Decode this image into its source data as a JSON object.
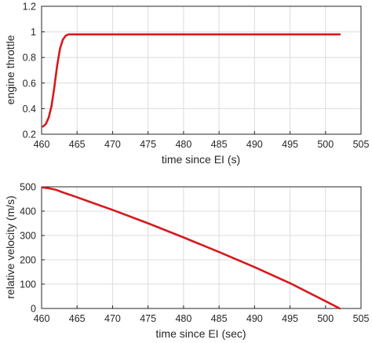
{
  "chart_data": [
    {
      "type": "line",
      "title": "",
      "xlabel": "time since EI (s)",
      "ylabel": "engine throttle",
      "xlim": [
        460,
        505
      ],
      "ylim": [
        0.2,
        1.2
      ],
      "xticks": [
        "460",
        "465",
        "470",
        "475",
        "480",
        "485",
        "490",
        "495",
        "500",
        "505"
      ],
      "yticks": [
        "0.2",
        "0.4",
        "0.6",
        "0.8",
        "1",
        "1.2"
      ],
      "grid": true,
      "series": [
        {
          "color": "#d7191c",
          "x": [
            460.2,
            460.6,
            461.0,
            461.4,
            461.8,
            462.2,
            462.6,
            463.0,
            463.4,
            463.8,
            464.3,
            465,
            470,
            480,
            490,
            502
          ],
          "y": [
            0.26,
            0.28,
            0.33,
            0.42,
            0.57,
            0.74,
            0.87,
            0.94,
            0.97,
            0.98,
            0.98,
            0.98,
            0.98,
            0.98,
            0.98,
            0.98
          ]
        }
      ]
    },
    {
      "type": "line",
      "title": "",
      "xlabel": "time since EI (sec)",
      "ylabel": "relative velocity (m/s)",
      "xlim": [
        460,
        505
      ],
      "ylim": [
        0,
        500
      ],
      "xticks": [
        "460",
        "465",
        "470",
        "475",
        "480",
        "485",
        "490",
        "495",
        "500",
        "505"
      ],
      "yticks": [
        "0",
        "100",
        "200",
        "300",
        "400",
        "500"
      ],
      "grid": true,
      "series": [
        {
          "color": "#d7191c",
          "x": [
            460.2,
            461,
            462,
            463,
            465,
            470,
            475,
            480,
            485,
            490,
            495,
            500,
            502
          ],
          "y": [
            497,
            494,
            488,
            477,
            457,
            405,
            350,
            292,
            232,
            170,
            104,
            30,
            0
          ]
        }
      ]
    }
  ]
}
